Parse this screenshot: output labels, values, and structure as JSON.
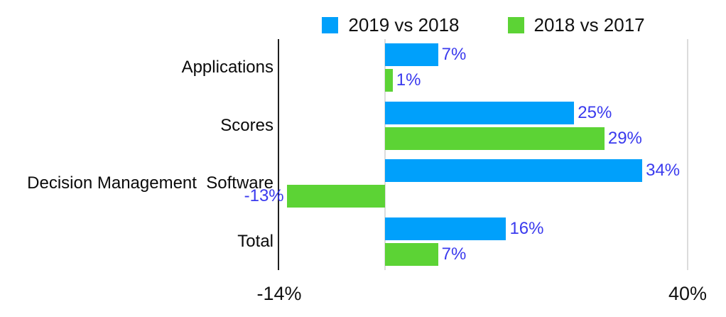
{
  "chart_data": {
    "type": "bar",
    "orientation": "horizontal",
    "title": "",
    "categories": [
      "Applications",
      "Scores",
      "Decision Management  Software",
      "Total"
    ],
    "series": [
      {
        "name": "2019 vs 2018",
        "color": "#00A0FB",
        "values": [
          7,
          25,
          34,
          16
        ]
      },
      {
        "name": "2018 vs 2017",
        "color": "#5CD335",
        "values": [
          1,
          29,
          -13,
          7
        ]
      }
    ],
    "value_labels": {
      "format": "{value}%",
      "color": "#3A3AEE",
      "texts": [
        [
          "7%",
          "25%",
          "34%",
          "16%"
        ],
        [
          "1%",
          "29%",
          "-13%",
          "7%"
        ]
      ]
    },
    "xlim": [
      -14,
      40
    ],
    "x_tick_labels": [
      "-14%",
      "40%"
    ],
    "legend_position": "top-center",
    "grid": "zero-line-only",
    "axis_colors": {
      "left_boundary": "#1f1f1f",
      "zero_line": "#dcdcdc",
      "right_boundary": "#dcdcdc"
    }
  }
}
